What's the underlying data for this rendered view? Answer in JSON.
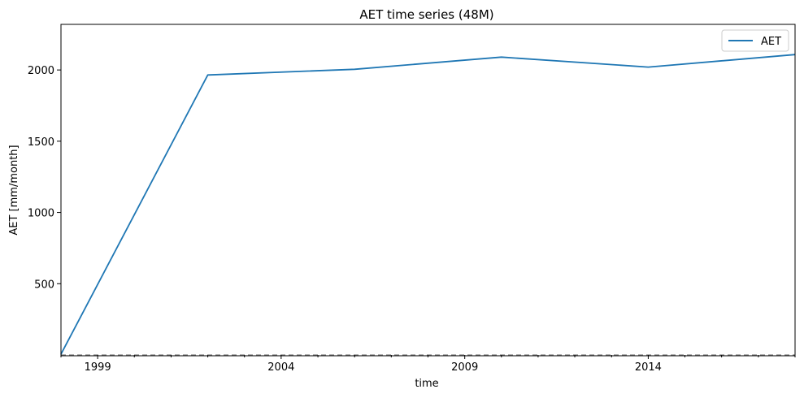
{
  "chart_data": {
    "type": "line",
    "title": "AET time series (48M)",
    "xlabel": "time",
    "ylabel": "AET [mm/month]",
    "x_axis_type": "date",
    "xlim": [
      "1998-01-01",
      "2018-01-01"
    ],
    "ylim": [
      0,
      2320
    ],
    "xticks_major": [
      "1999",
      "2004",
      "2009",
      "2014"
    ],
    "yticks": [
      500,
      1000,
      1500,
      2000
    ],
    "grid": false,
    "legend": "top-right",
    "color": "#1f77b4",
    "baseline": {
      "y": 0,
      "style": "dashed",
      "color": "#808080"
    },
    "series": [
      {
        "name": "AET",
        "color": "#1f77b4",
        "x": [
          "1998-01-01",
          "2002-01-01",
          "2006-01-01",
          "2010-01-01",
          "2014-01-01",
          "2018-01-01"
        ],
        "y": [
          5,
          1965,
          2005,
          2090,
          2020,
          2108
        ]
      }
    ]
  }
}
